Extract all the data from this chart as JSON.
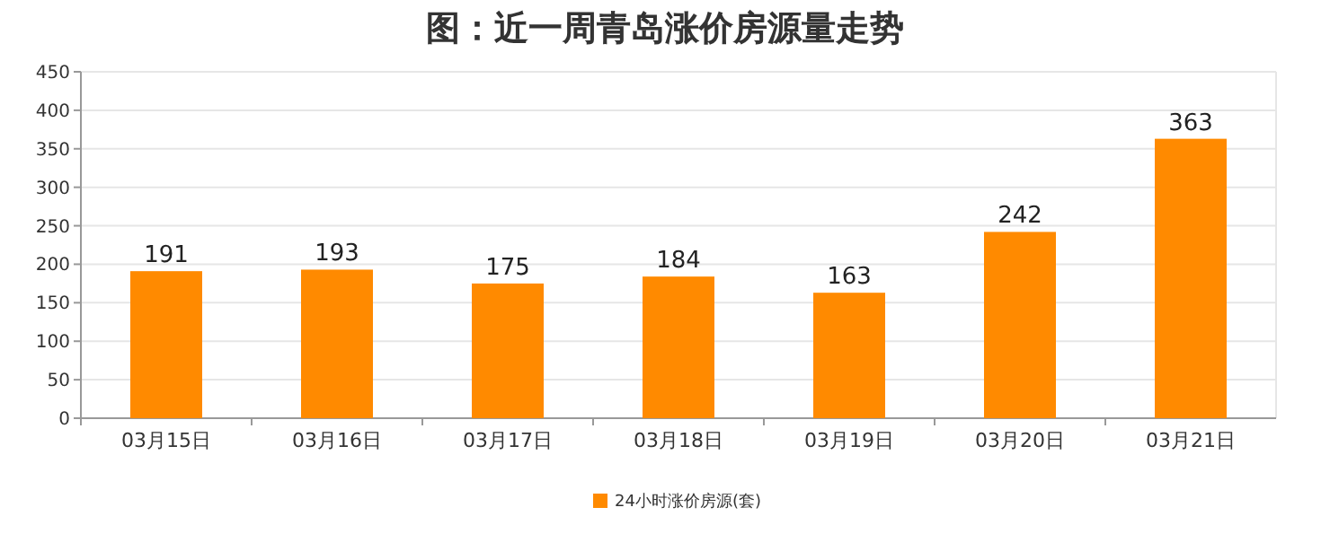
{
  "chart_data": {
    "type": "bar",
    "title": "图：近一周青岛涨价房源量走势",
    "categories": [
      "03月15日",
      "03月16日",
      "03月17日",
      "03月18日",
      "03月19日",
      "03月20日",
      "03月21日"
    ],
    "series": [
      {
        "name": "24小时涨价房源(套)",
        "color": "#ff8a00",
        "values": [
          191,
          193,
          175,
          184,
          163,
          242,
          363
        ]
      }
    ],
    "ylim": [
      0,
      450
    ],
    "yticks": [
      0,
      50,
      100,
      150,
      200,
      250,
      300,
      350,
      400,
      450
    ],
    "grid": "y",
    "legend": "bottom",
    "data_labels": true
  }
}
